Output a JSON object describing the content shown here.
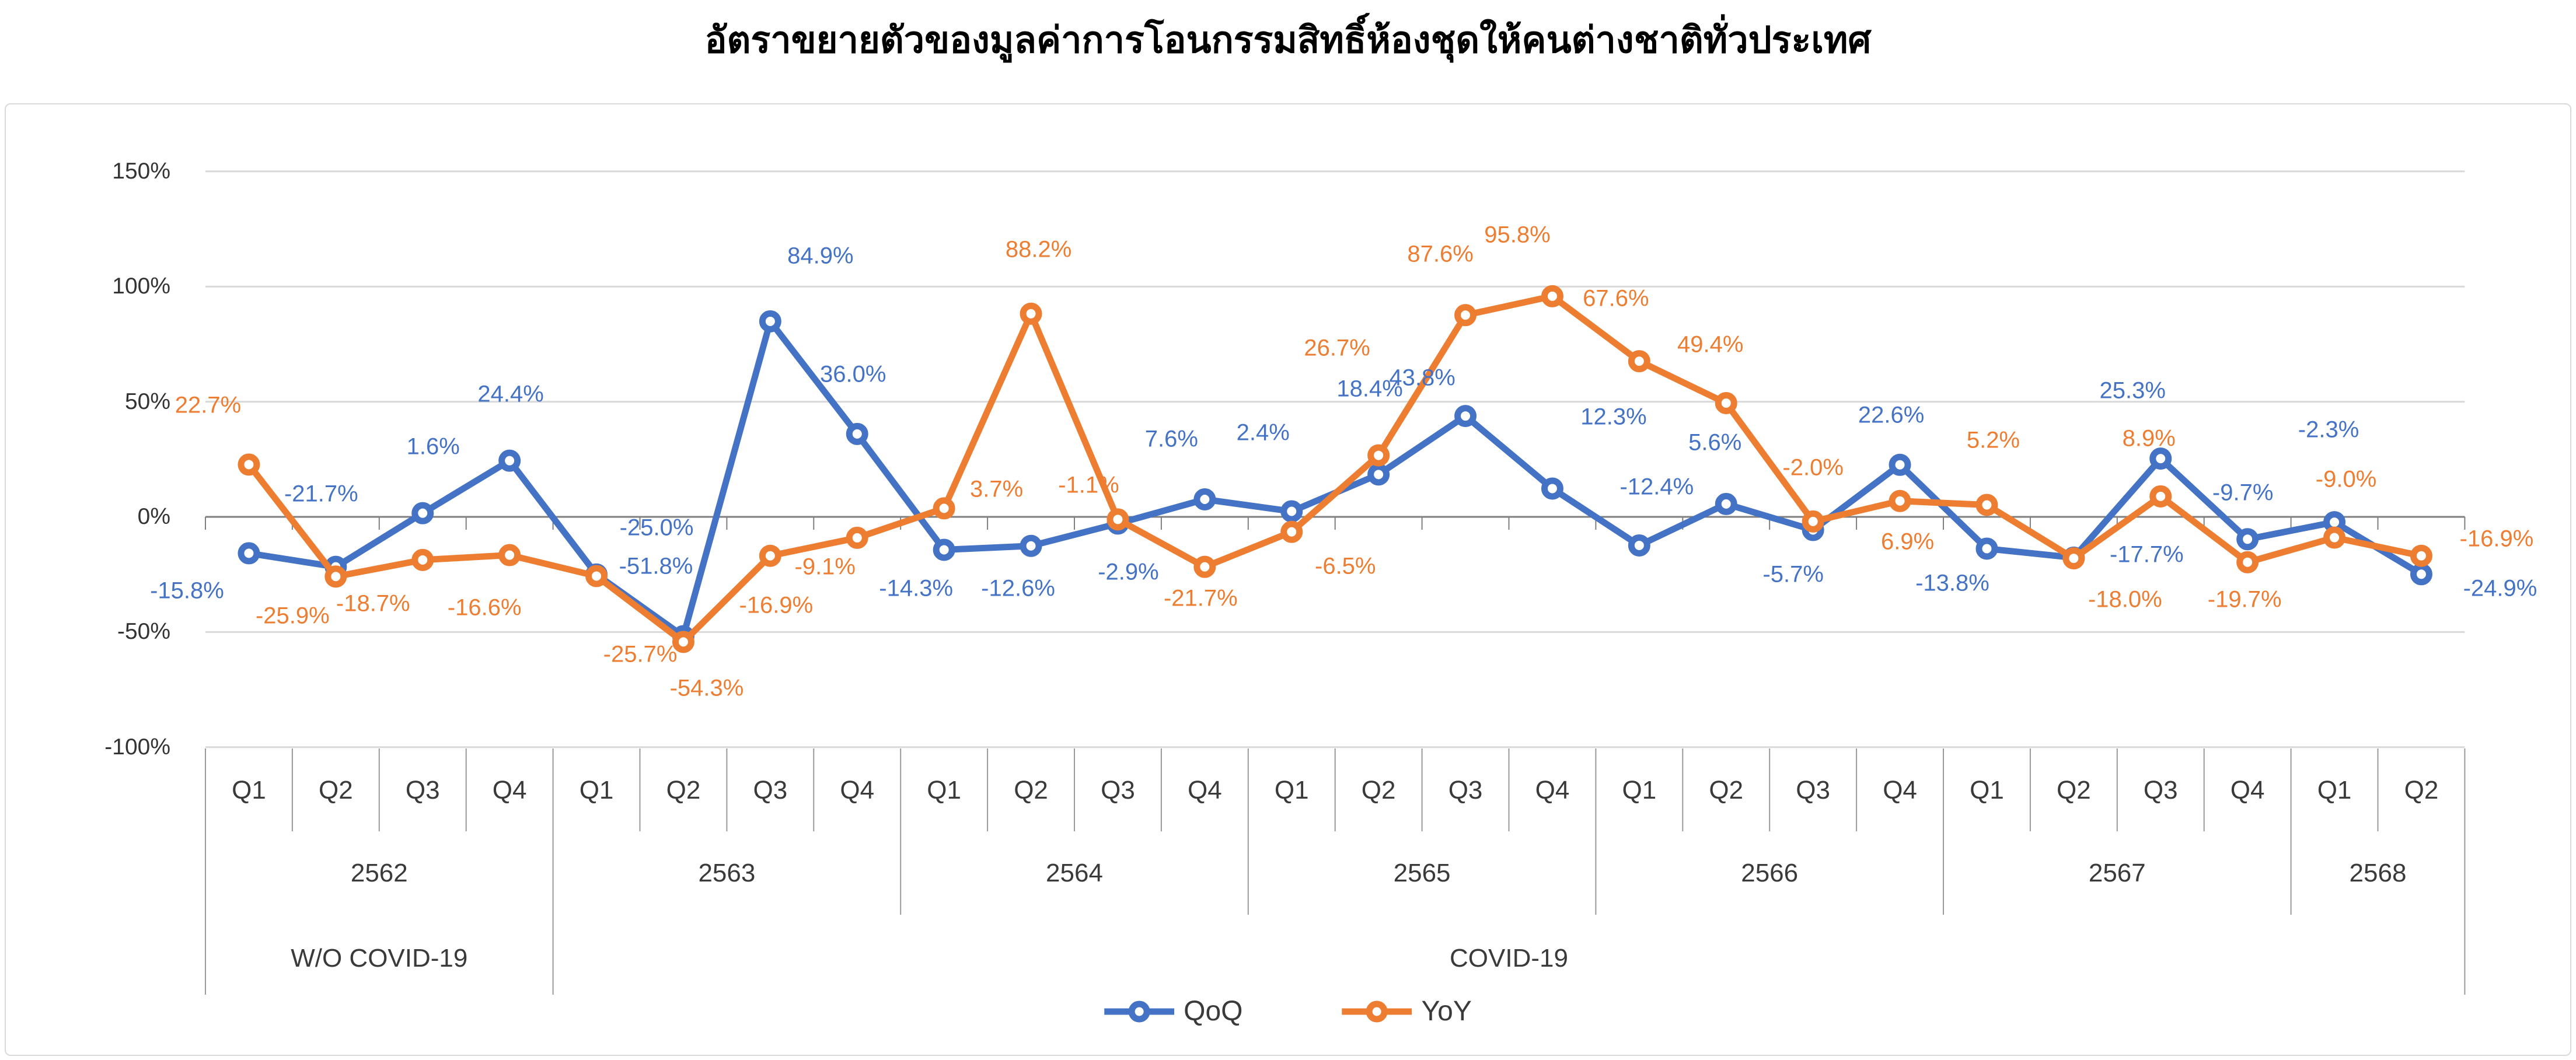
{
  "title": "อัตราขยายตัวของมูลค่าการโอนกรรมสิทธิ์ห้องชุดให้คนต่างชาติทั่วประเทศ",
  "legend": {
    "items": [
      {
        "label": "QoQ",
        "color": "#4472C4"
      },
      {
        "label": "YoY",
        "color": "#ED7D31"
      }
    ]
  },
  "colors": {
    "qoq": "#4472C4",
    "yoy": "#ED7D31",
    "gridline": "#D9D9D9",
    "zero_axis": "#7F7F7F",
    "separator": "#999999",
    "axis_text": "#333333",
    "category_text": "#3A3A3A",
    "title_text": "#000000",
    "chart_border": "#D9D9D9"
  },
  "y_axis": {
    "tick_labels": [
      "150%",
      "100%",
      "50%",
      "0%",
      "-50%",
      "-100%"
    ]
  },
  "chart_data": {
    "type": "line",
    "title": "อัตราขยายตัวของมูลค่าการโอนกรรมสิทธิ์ห้องชุดให้คนต่างชาติทั่วประเทศ",
    "ylim": [
      -100,
      150
    ],
    "yticks": [
      150,
      100,
      50,
      0,
      -50,
      -100
    ],
    "grid": "horizontal",
    "legend_position": "bottom-center",
    "categories": [
      "Q1",
      "Q2",
      "Q3",
      "Q4",
      "Q1",
      "Q2",
      "Q3",
      "Q4",
      "Q1",
      "Q2",
      "Q3",
      "Q4",
      "Q1",
      "Q2",
      "Q3",
      "Q4",
      "Q1",
      "Q2",
      "Q3",
      "Q4",
      "Q1",
      "Q2",
      "Q3",
      "Q4",
      "Q1",
      "Q2"
    ],
    "year_groups": [
      {
        "year": "2562",
        "count": 4
      },
      {
        "year": "2563",
        "count": 4
      },
      {
        "year": "2564",
        "count": 4
      },
      {
        "year": "2565",
        "count": 4
      },
      {
        "year": "2566",
        "count": 4
      },
      {
        "year": "2567",
        "count": 4
      },
      {
        "year": "2568",
        "count": 2
      }
    ],
    "era_groups": [
      {
        "label": "W/O COVID-19",
        "from": 0,
        "to": 4
      },
      {
        "label": "COVID-19",
        "from": 4,
        "to": 26
      }
    ],
    "series": [
      {
        "name": "QoQ",
        "color": "#4472C4",
        "values": [
          -15.8,
          -21.7,
          1.6,
          24.4,
          -25.0,
          -51.8,
          84.9,
          36.0,
          -14.3,
          -12.6,
          -2.9,
          7.6,
          2.4,
          18.4,
          43.8,
          12.3,
          -12.4,
          5.6,
          -5.7,
          22.6,
          -13.8,
          -17.7,
          25.3,
          -9.7,
          -2.3,
          -24.9
        ],
        "label_dx": [
          -106,
          -25,
          18,
          2,
          103,
          -47,
          86,
          -7,
          -48,
          -22,
          18,
          -57,
          -49,
          -15,
          -74,
          105,
          30,
          -19,
          -34,
          -15,
          -59,
          125,
          -48,
          -8,
          -10,
          135
        ],
        "label_dy": [
          65,
          -125,
          -114,
          -114,
          -80,
          -120,
          -112,
          -102,
          67,
          73,
          84,
          -103,
          -135,
          -146,
          -65,
          -122,
          -100,
          -105,
          76,
          -85,
          60,
          -5,
          -116,
          -79,
          -158,
          25
        ]
      },
      {
        "name": "YoY",
        "color": "#ED7D31",
        "values": [
          22.7,
          -25.9,
          -18.7,
          -16.6,
          -25.7,
          -54.3,
          -16.9,
          -9.1,
          3.7,
          88.2,
          -1.1,
          -21.7,
          -6.5,
          26.7,
          87.6,
          95.8,
          67.6,
          49.4,
          -2.0,
          6.9,
          5.2,
          -18.0,
          8.9,
          -19.7,
          -9.0,
          -16.9
        ],
        "label_dx": [
          -70,
          -74,
          -85,
          -43,
          75,
          40,
          10,
          -55,
          90,
          13,
          -50,
          -7,
          92,
          -71,
          -43,
          -60,
          -40,
          -27,
          0,
          13,
          11,
          88,
          -20,
          -5,
          20,
          129
        ],
        "label_dy": [
          -101,
          68,
          75,
          90,
          135,
          80,
          85,
          50,
          -32,
          -110,
          -58,
          54,
          59,
          -184,
          -104,
          -105,
          -107,
          -100,
          -92,
          70,
          -110,
          71,
          -99,
          64,
          -100,
          -29
        ]
      }
    ]
  }
}
